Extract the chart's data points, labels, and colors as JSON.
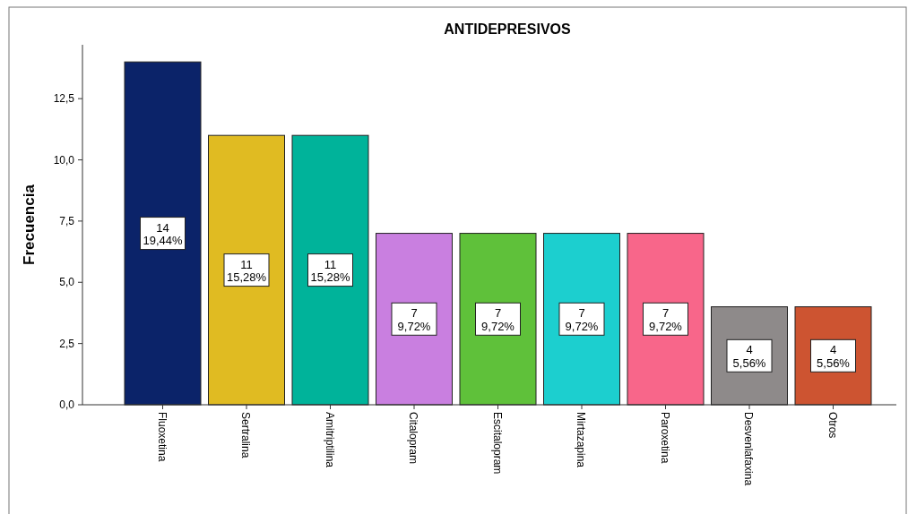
{
  "chart_data": {
    "type": "bar",
    "title": "ANTIDEPRESIVOS",
    "ylabel": "Frecuencia",
    "categories": [
      "Fluoxetina",
      "Sertralina",
      "Amitriptilina",
      "Citalopram",
      "Escitalopram",
      "Mirtazapina",
      "Paroxetina",
      "Desvenlafaxina",
      "Otros"
    ],
    "values": [
      14,
      11,
      11,
      7,
      7,
      7,
      7,
      4,
      4
    ],
    "colors": [
      "#0b2369",
      "#e0bb22",
      "#00b39a",
      "#c97fe0",
      "#5fc13a",
      "#1ccfcf",
      "#f8668a",
      "#8e8a8a",
      "#cd5431"
    ],
    "value_labels": [
      "14\n19,44%",
      "11\n15,28%",
      "11\n15,28%",
      "7\n9,72%",
      "7\n9,72%",
      "7\n9,72%",
      "7\n9,72%",
      "4\n5,56%",
      "4\n5,56%"
    ],
    "ylim": [
      0,
      14.7
    ],
    "yticks": [
      {
        "value": 0,
        "label": "0,0"
      },
      {
        "value": 2.5,
        "label": "2,5"
      },
      {
        "value": 5,
        "label": "5,0"
      },
      {
        "value": 7.5,
        "label": "7,5"
      },
      {
        "value": 10,
        "label": "10,0"
      },
      {
        "value": 12.5,
        "label": "12,5"
      }
    ],
    "grid": false
  }
}
